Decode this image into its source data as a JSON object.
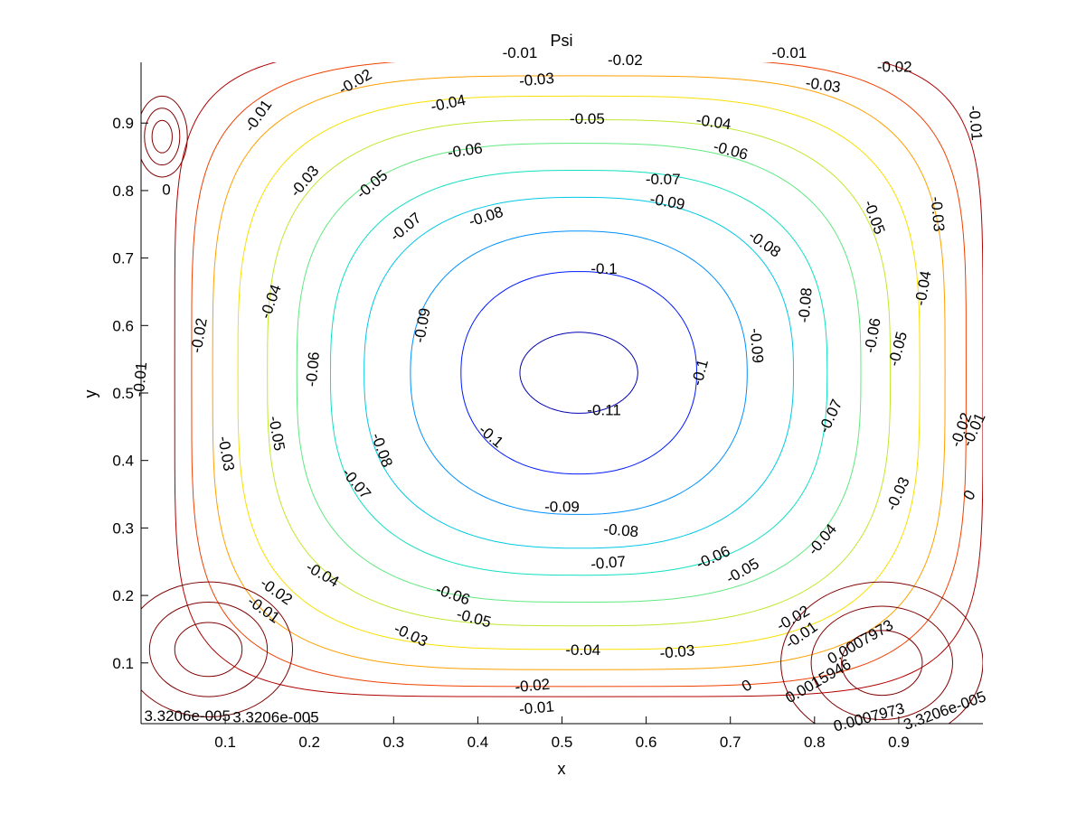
{
  "chart_data": {
    "type": "contour",
    "title": "Psi",
    "xlabel": "x",
    "ylabel": "y",
    "xlim": [
      0.0,
      1.0
    ],
    "ylim": [
      0.01,
      0.99
    ],
    "grid": false,
    "x_ticks": [
      "0.1",
      "0.2",
      "0.3",
      "0.4",
      "0.5",
      "0.6",
      "0.7",
      "0.8",
      "0.9"
    ],
    "y_ticks": [
      "0.1",
      "0.2",
      "0.3",
      "0.4",
      "0.5",
      "0.6",
      "0.7",
      "0.8",
      "0.9"
    ],
    "center": [
      0.52,
      0.53
    ],
    "levels": [
      {
        "value": -0.11,
        "color": "#0000b4",
        "rx": 0.07,
        "ry": 0.06,
        "p": 2.0
      },
      {
        "value": -0.1,
        "color": "#0018ff",
        "rx": 0.14,
        "ry": 0.15,
        "p": 2.2
      },
      {
        "value": -0.09,
        "color": "#0090ff",
        "rx": 0.2,
        "ry": 0.21,
        "p": 2.3
      },
      {
        "value": -0.08,
        "color": "#00c8e6",
        "rx": 0.255,
        "ry": 0.26,
        "p": 2.5
      },
      {
        "value": -0.07,
        "color": "#10e0c0",
        "rx": 0.295,
        "ry": 0.3,
        "p": 2.7
      },
      {
        "value": -0.06,
        "color": "#60e880",
        "rx": 0.335,
        "ry": 0.34,
        "p": 2.9
      },
      {
        "value": -0.05,
        "color": "#c0e830",
        "rx": 0.37,
        "ry": 0.375,
        "p": 3.1
      },
      {
        "value": -0.04,
        "color": "#f8e000",
        "rx": 0.405,
        "ry": 0.41,
        "p": 3.4
      },
      {
        "value": -0.03,
        "color": "#ffa000",
        "rx": 0.435,
        "ry": 0.44,
        "p": 3.8
      },
      {
        "value": -0.02,
        "color": "#f04000",
        "rx": 0.46,
        "ry": 0.465,
        "p": 4.3
      },
      {
        "value": -0.01,
        "color": "#b00000",
        "rx": 0.48,
        "ry": 0.48,
        "p": 5.5
      }
    ],
    "labels": [
      {
        "text": "-0.11",
        "x": 0.55,
        "y": 0.473,
        "angle": 0
      },
      {
        "text": "-0.1",
        "x": 0.55,
        "y": 0.683,
        "angle": 0
      },
      {
        "text": "-0.1",
        "x": 0.415,
        "y": 0.435,
        "angle": 40
      },
      {
        "text": "-0.1",
        "x": 0.665,
        "y": 0.53,
        "angle": -75
      },
      {
        "text": "-0.09",
        "x": 0.625,
        "y": 0.782,
        "angle": 10
      },
      {
        "text": "-0.09",
        "x": 0.335,
        "y": 0.6,
        "angle": -80
      },
      {
        "text": "-0.09",
        "x": 0.73,
        "y": 0.57,
        "angle": 85
      },
      {
        "text": "-0.09",
        "x": 0.5,
        "y": 0.33,
        "angle": 0
      },
      {
        "text": "-0.08",
        "x": 0.41,
        "y": 0.76,
        "angle": -18
      },
      {
        "text": "-0.08",
        "x": 0.74,
        "y": 0.72,
        "angle": 35
      },
      {
        "text": "-0.08",
        "x": 0.79,
        "y": 0.63,
        "angle": -85
      },
      {
        "text": "-0.08",
        "x": 0.285,
        "y": 0.415,
        "angle": 70
      },
      {
        "text": "-0.08",
        "x": 0.57,
        "y": 0.295,
        "angle": 5
      },
      {
        "text": "-0.07",
        "x": 0.62,
        "y": 0.815,
        "angle": 0
      },
      {
        "text": "-0.07",
        "x": 0.315,
        "y": 0.745,
        "angle": -40
      },
      {
        "text": "-0.07",
        "x": 0.82,
        "y": 0.465,
        "angle": -65
      },
      {
        "text": "-0.07",
        "x": 0.255,
        "y": 0.365,
        "angle": 50
      },
      {
        "text": "-0.07",
        "x": 0.555,
        "y": 0.247,
        "angle": -5
      },
      {
        "text": "-0.06",
        "x": 0.385,
        "y": 0.858,
        "angle": -8
      },
      {
        "text": "-0.06",
        "x": 0.7,
        "y": 0.858,
        "angle": 15
      },
      {
        "text": "-0.06",
        "x": 0.205,
        "y": 0.535,
        "angle": -85
      },
      {
        "text": "-0.06",
        "x": 0.87,
        "y": 0.585,
        "angle": -80
      },
      {
        "text": "-0.06",
        "x": 0.37,
        "y": 0.2,
        "angle": 20
      },
      {
        "text": "-0.06",
        "x": 0.68,
        "y": 0.255,
        "angle": -25
      },
      {
        "text": "-0.05",
        "x": 0.53,
        "y": 0.905,
        "angle": 0
      },
      {
        "text": "-0.05",
        "x": 0.275,
        "y": 0.808,
        "angle": -40
      },
      {
        "text": "-0.05",
        "x": 0.87,
        "y": 0.76,
        "angle": 70
      },
      {
        "text": "-0.05",
        "x": 0.9,
        "y": 0.565,
        "angle": -75
      },
      {
        "text": "-0.05",
        "x": 0.16,
        "y": 0.44,
        "angle": 80
      },
      {
        "text": "-0.05",
        "x": 0.395,
        "y": 0.165,
        "angle": 15
      },
      {
        "text": "-0.05",
        "x": 0.715,
        "y": 0.235,
        "angle": -30
      },
      {
        "text": "-0.04",
        "x": 0.365,
        "y": 0.928,
        "angle": -12
      },
      {
        "text": "-0.04",
        "x": 0.68,
        "y": 0.9,
        "angle": 8
      },
      {
        "text": "-0.04",
        "x": 0.155,
        "y": 0.635,
        "angle": -70
      },
      {
        "text": "-0.04",
        "x": 0.93,
        "y": 0.655,
        "angle": -80
      },
      {
        "text": "-0.04",
        "x": 0.215,
        "y": 0.23,
        "angle": 30
      },
      {
        "text": "-0.04",
        "x": 0.525,
        "y": 0.118,
        "angle": 0
      },
      {
        "text": "-0.04",
        "x": 0.81,
        "y": 0.282,
        "angle": -50
      },
      {
        "text": "-0.03",
        "x": 0.47,
        "y": 0.963,
        "angle": -5
      },
      {
        "text": "-0.03",
        "x": 0.81,
        "y": 0.955,
        "angle": 8
      },
      {
        "text": "-0.03",
        "x": 0.195,
        "y": 0.813,
        "angle": -50
      },
      {
        "text": "-0.03",
        "x": 0.945,
        "y": 0.765,
        "angle": 85
      },
      {
        "text": "-0.03",
        "x": 0.1,
        "y": 0.41,
        "angle": 80
      },
      {
        "text": "-0.03",
        "x": 0.9,
        "y": 0.35,
        "angle": -65
      },
      {
        "text": "-0.03",
        "x": 0.32,
        "y": 0.14,
        "angle": 25
      },
      {
        "text": "-0.03",
        "x": 0.637,
        "y": 0.115,
        "angle": -5
      },
      {
        "text": "-0.02",
        "x": 0.575,
        "y": 0.992,
        "angle": 0
      },
      {
        "text": "-0.02",
        "x": 0.895,
        "y": 0.982,
        "angle": 0
      },
      {
        "text": "-0.02",
        "x": 0.255,
        "y": 0.96,
        "angle": -30
      },
      {
        "text": "-0.02",
        "x": 0.07,
        "y": 0.585,
        "angle": -80
      },
      {
        "text": "-0.02",
        "x": 0.975,
        "y": 0.445,
        "angle": -70
      },
      {
        "text": "-0.02",
        "x": 0.16,
        "y": 0.205,
        "angle": 35
      },
      {
        "text": "-0.02",
        "x": 0.465,
        "y": 0.065,
        "angle": -5
      },
      {
        "text": "-0.02",
        "x": 0.775,
        "y": 0.165,
        "angle": -30
      },
      {
        "text": "-0.01",
        "x": 0.45,
        "y": 1.003,
        "angle": 0
      },
      {
        "text": "-0.01",
        "x": 0.77,
        "y": 1.003,
        "angle": 0
      },
      {
        "text": "-0.01",
        "x": 0.14,
        "y": 0.91,
        "angle": -55
      },
      {
        "text": "-0.01",
        "x": 0.99,
        "y": 0.9,
        "angle": 85
      },
      {
        "text": "-0.01",
        "x": 0.0,
        "y": 0.52,
        "angle": -85
      },
      {
        "text": "-0.01",
        "x": 0.99,
        "y": 0.445,
        "angle": -65
      },
      {
        "text": "-0.01",
        "x": 0.145,
        "y": 0.178,
        "angle": 35
      },
      {
        "text": "-0.01",
        "x": 0.47,
        "y": 0.032,
        "angle": -5
      },
      {
        "text": "-0.01",
        "x": 0.785,
        "y": 0.14,
        "angle": -35
      },
      {
        "text": "0",
        "x": 0.03,
        "y": 0.8,
        "angle": 0
      },
      {
        "text": "0",
        "x": 0.985,
        "y": 0.348,
        "angle": -60
      },
      {
        "text": "0",
        "x": 0.72,
        "y": 0.065,
        "angle": -30
      },
      {
        "text": "0.0007973",
        "x": 0.855,
        "y": 0.13,
        "angle": -30
      },
      {
        "text": "0.0015946",
        "x": 0.805,
        "y": 0.072,
        "angle": -30
      },
      {
        "text": "0.0007973",
        "x": 0.865,
        "y": 0.018,
        "angle": -15
      },
      {
        "text": "3.3206e-005",
        "x": 0.055,
        "y": 0.02,
        "angle": 0
      },
      {
        "text": "3.3206e-005",
        "x": 0.16,
        "y": 0.018,
        "angle": 0
      },
      {
        "text": "3.3206e-005",
        "x": 0.955,
        "y": 0.028,
        "angle": -20
      }
    ],
    "secondary_regions": [
      {
        "name": "bottom-left",
        "cx": 0.08,
        "cy": 0.12,
        "rx": 0.1,
        "ry": 0.1
      },
      {
        "name": "bottom-right",
        "cx": 0.88,
        "cy": 0.1,
        "rx": 0.12,
        "ry": 0.12
      },
      {
        "name": "top-left",
        "cx": 0.025,
        "cy": 0.88,
        "rx": 0.03,
        "ry": 0.06
      }
    ]
  }
}
